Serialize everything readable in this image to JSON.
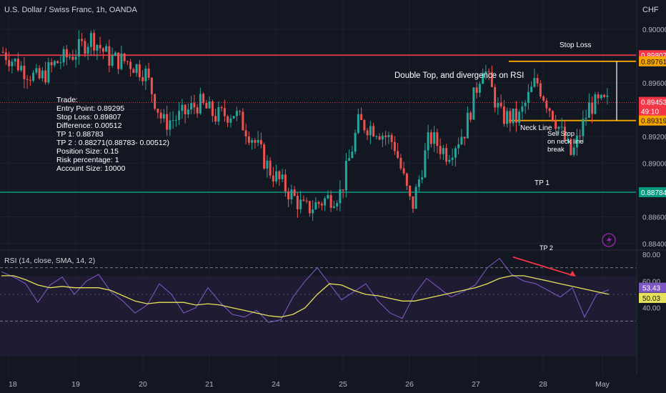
{
  "header": {
    "symbol_title": "U.S. Dollar / Swiss Franc, 1h, OANDA",
    "currency": "CHF"
  },
  "colors": {
    "background": "#131722",
    "up_candle": "#26a69a",
    "down_candle": "#ef5350",
    "stop_loss_line": "#f23645",
    "neckline": "#f7a600",
    "tp1_line": "#089981",
    "rsi_line": "#7e57c2",
    "rsi_ma": "#e6e05a",
    "divergence_arrow": "#f23645"
  },
  "price_axis": {
    "ticks": [
      "0.90000",
      "0.89800",
      "0.89600",
      "0.89400",
      "0.89200",
      "0.89000",
      "0.88800",
      "0.88600",
      "0.88400"
    ],
    "badges": [
      {
        "label": "0.89807",
        "color": "#f23645",
        "text_color": "#ffffff"
      },
      {
        "label": "0.89761",
        "color": "#f7a600",
        "text_color": "#131722"
      },
      {
        "label": "0.89453",
        "color": "#f23645",
        "text_color": "#ffffff"
      },
      {
        "label": "49:10",
        "color": "#f23645",
        "text_color": "#ffffff"
      },
      {
        "label": "0.89319",
        "color": "#f7a600",
        "text_color": "#131722"
      },
      {
        "label": "0.88784",
        "color": "#089981",
        "text_color": "#ffffff"
      }
    ]
  },
  "rsi_axis": {
    "ticks": [
      "80.00",
      "60.00",
      "40.00"
    ],
    "badges": [
      {
        "label": "53.43",
        "color": "#7e57c2",
        "text_color": "#ffffff"
      },
      {
        "label": "50.03",
        "color": "#e6e05a",
        "text_color": "#131722"
      }
    ]
  },
  "time_axis": {
    "labels": [
      "18",
      "19",
      "20",
      "21",
      "24",
      "25",
      "26",
      "27",
      "28",
      "May"
    ]
  },
  "annotations": {
    "trade_lines": [
      "Trade:",
      "Entry Point: 0.89295",
      "Stop Loss: 0.89807",
      "Difference: 0.00512",
      "TP 1: 0.88783",
      "TP 2 : 0.88271(0.88783-  0.00512)",
      "Position Size:  0.15",
      "Risk percentage: 1",
      "Account Size: 10000"
    ],
    "stop_loss_label": "Stop Loss",
    "double_top_label": "Double Top, and divergence on RSI",
    "neck_line_label": "Neck Line",
    "sell_stop_lines": [
      "Sell Stop",
      "on neck line",
      "break"
    ],
    "tp1_label": "TP 1",
    "tp2_label": "TP 2"
  },
  "rsi_panel": {
    "legend": "RSI (14, close, SMA, 14, 2)"
  },
  "chart_data": {
    "type": "candlestick",
    "title": "U.S. Dollar / Swiss Franc, 1h, OANDA",
    "ylim": [
      0.8835,
      0.9003
    ],
    "levels": {
      "stop_loss": 0.89807,
      "double_top_high": 0.89761,
      "current_price": 0.89453,
      "neckline": 0.89319,
      "tp1": 0.88784
    },
    "price_path": [
      [
        "18",
        0.8983
      ],
      [
        "",
        0.8972
      ],
      [
        "",
        0.8962
      ],
      [
        "",
        0.8975
      ],
      [
        "19",
        0.8982
      ],
      [
        "",
        0.8994
      ],
      [
        "",
        0.8978
      ],
      [
        "20",
        0.8976
      ],
      [
        "",
        0.8968
      ],
      [
        "",
        0.893
      ],
      [
        "21",
        0.8935
      ],
      [
        "",
        0.8945
      ],
      [
        "",
        0.8935
      ],
      [
        "",
        0.8938
      ],
      [
        "24",
        0.892
      ],
      [
        "",
        0.8895
      ],
      [
        "",
        0.888
      ],
      [
        "25",
        0.8865
      ],
      [
        "",
        0.8872
      ],
      [
        "",
        0.8878
      ],
      [
        "",
        0.893
      ],
      [
        "26",
        0.8926
      ],
      [
        "",
        0.8915
      ],
      [
        "",
        0.8866
      ],
      [
        "",
        0.892
      ],
      [
        "27",
        0.8907
      ],
      [
        "",
        0.8925
      ],
      [
        "",
        0.8974
      ],
      [
        "",
        0.8935
      ],
      [
        "28",
        0.8933
      ],
      [
        "",
        0.8962
      ],
      [
        "",
        0.8935
      ],
      [
        "",
        0.8905
      ],
      [
        "",
        0.8943
      ],
      [
        "May",
        0.8945
      ]
    ],
    "rsi": {
      "ylim": [
        20,
        80
      ],
      "levels": [
        70,
        30
      ],
      "rsi_series": [
        67,
        63,
        58,
        44,
        57,
        63,
        50,
        60,
        65,
        52,
        45,
        36,
        42,
        58,
        50,
        36,
        40,
        55,
        44,
        35,
        33,
        38,
        29,
        31,
        48,
        60,
        70,
        58,
        46,
        52,
        58,
        45,
        36,
        32,
        50,
        62,
        55,
        48,
        52,
        57,
        70,
        77,
        65,
        60,
        58,
        53,
        48,
        55,
        33,
        50,
        53.43
      ],
      "ma_series": [
        64,
        64,
        61,
        57,
        55,
        56,
        55,
        55,
        55,
        53,
        49,
        45,
        43,
        44,
        44,
        44,
        42,
        43,
        42,
        40,
        38,
        36,
        34,
        33,
        35,
        40,
        50,
        58,
        57,
        53,
        50,
        49,
        47,
        45,
        45,
        47,
        49,
        51,
        53,
        55,
        58,
        62,
        64,
        64,
        62,
        60,
        58,
        56,
        54,
        52,
        50.03
      ],
      "current_rsi": 53.43,
      "current_ma": 50.03
    }
  }
}
